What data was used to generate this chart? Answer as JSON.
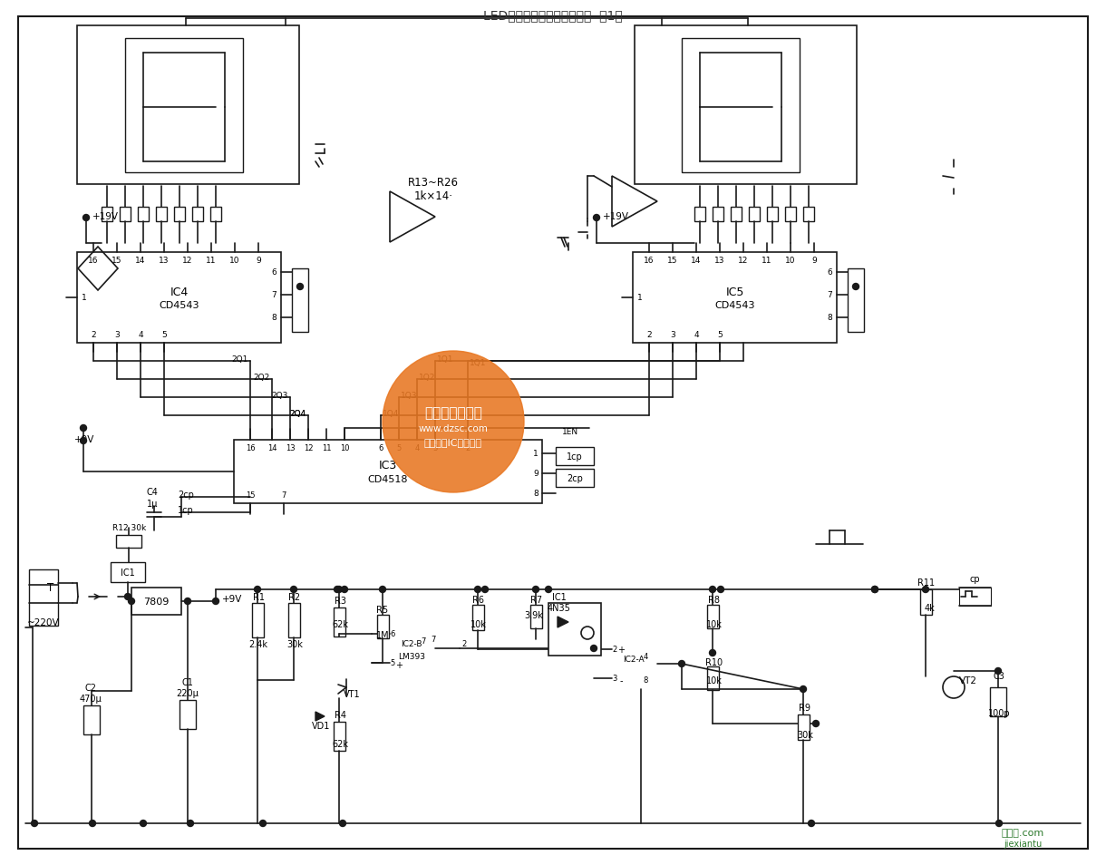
{
  "title": "LED电路中的电子计数器电路  第1张",
  "background_color": "#ffffff",
  "line_color": "#1a1a1a",
  "figsize": [
    12.0,
    9.34
  ],
  "dpi": 100,
  "watermark_text": "维库电子市场网",
  "watermark_sub1": "www.dzsc.com",
  "watermark_sub2": "全球最大IC采购网站",
  "watermark_color": "#e87722",
  "footer_green": "#2d7a2d"
}
